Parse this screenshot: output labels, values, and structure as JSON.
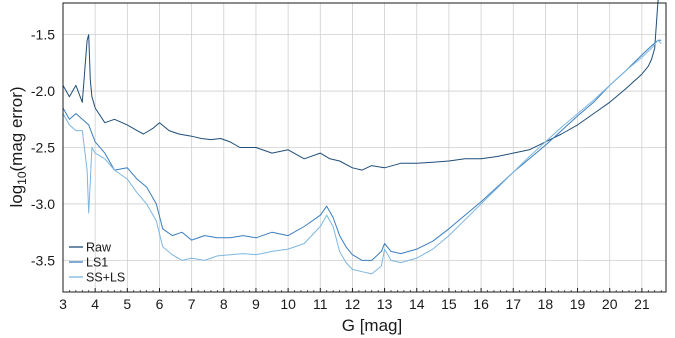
{
  "chart_data": {
    "type": "line",
    "title": "",
    "xlabel": "G [mag]",
    "ylabel_prefix": "log",
    "ylabel_sub": "10",
    "ylabel_suffix": "(mag error)",
    "xlim": [
      3,
      21.75
    ],
    "ylim": [
      -3.78,
      -1.22
    ],
    "xticks": [
      3,
      4,
      5,
      6,
      7,
      8,
      9,
      10,
      11,
      12,
      13,
      14,
      15,
      16,
      17,
      18,
      19,
      20,
      21
    ],
    "yticks": [
      -1.5,
      -2.0,
      -2.5,
      -3.0,
      -3.5
    ],
    "ytick_labels": [
      "-1.5",
      "-2.0",
      "-2.5",
      "-3.0",
      "-3.5"
    ],
    "grid": true,
    "legend_position": "lower-left",
    "series": [
      {
        "name": "Raw",
        "color": "#1f4e79",
        "x": [
          3.0,
          3.2,
          3.4,
          3.6,
          3.75,
          3.8,
          3.85,
          3.9,
          4.0,
          4.3,
          4.6,
          5.0,
          5.3,
          5.5,
          5.8,
          6.0,
          6.3,
          6.6,
          7.0,
          7.3,
          7.6,
          7.9,
          8.2,
          8.5,
          9.0,
          9.5,
          10.0,
          10.5,
          11.0,
          11.3,
          11.6,
          12.0,
          12.3,
          12.6,
          13.0,
          13.5,
          14.0,
          14.5,
          15.0,
          15.5,
          16.0,
          16.5,
          17.0,
          17.5,
          18.0,
          18.5,
          19.0,
          19.5,
          20.0,
          20.5,
          21.0,
          21.2,
          21.3,
          21.4,
          21.5,
          21.6
        ],
        "y": [
          -1.95,
          -2.05,
          -1.95,
          -2.1,
          -1.55,
          -1.5,
          -1.9,
          -2.05,
          -2.15,
          -2.28,
          -2.25,
          -2.3,
          -2.35,
          -2.38,
          -2.33,
          -2.28,
          -2.35,
          -2.38,
          -2.4,
          -2.42,
          -2.43,
          -2.42,
          -2.45,
          -2.5,
          -2.5,
          -2.55,
          -2.52,
          -2.6,
          -2.55,
          -2.6,
          -2.62,
          -2.68,
          -2.7,
          -2.66,
          -2.68,
          -2.64,
          -2.64,
          -2.63,
          -2.62,
          -2.6,
          -2.6,
          -2.58,
          -2.55,
          -2.52,
          -2.45,
          -2.38,
          -2.3,
          -2.2,
          -2.1,
          -1.98,
          -1.85,
          -1.78,
          -1.72,
          -1.62,
          -1.2,
          -1.15
        ]
      },
      {
        "name": "LS1",
        "color": "#3a7ebf",
        "x": [
          3.0,
          3.2,
          3.4,
          3.6,
          3.8,
          4.0,
          4.3,
          4.6,
          5.0,
          5.3,
          5.6,
          5.9,
          6.1,
          6.4,
          6.7,
          7.0,
          7.4,
          7.8,
          8.2,
          8.6,
          9.0,
          9.5,
          10.0,
          10.5,
          11.0,
          11.2,
          11.4,
          11.6,
          11.8,
          12.0,
          12.3,
          12.6,
          12.9,
          13.0,
          13.2,
          13.5,
          14.0,
          14.5,
          15.0,
          15.5,
          16.0,
          16.5,
          17.0,
          17.5,
          18.0,
          18.5,
          19.0,
          19.5,
          20.0,
          20.5,
          21.0,
          21.3,
          21.5,
          21.6
        ],
        "y": [
          -2.15,
          -2.25,
          -2.2,
          -2.25,
          -2.3,
          -2.45,
          -2.55,
          -2.7,
          -2.68,
          -2.78,
          -2.85,
          -3.0,
          -3.22,
          -3.28,
          -3.25,
          -3.32,
          -3.28,
          -3.3,
          -3.3,
          -3.28,
          -3.3,
          -3.25,
          -3.28,
          -3.2,
          -3.1,
          -3.02,
          -3.12,
          -3.28,
          -3.38,
          -3.45,
          -3.5,
          -3.5,
          -3.42,
          -3.35,
          -3.42,
          -3.44,
          -3.4,
          -3.33,
          -3.22,
          -3.1,
          -2.98,
          -2.85,
          -2.72,
          -2.6,
          -2.48,
          -2.35,
          -2.22,
          -2.1,
          -1.95,
          -1.82,
          -1.68,
          -1.6,
          -1.55,
          -1.55
        ]
      },
      {
        "name": "SS+LS",
        "color": "#7db6e0",
        "x": [
          3.0,
          3.2,
          3.4,
          3.6,
          3.75,
          3.8,
          3.85,
          3.9,
          4.0,
          4.3,
          4.6,
          5.0,
          5.3,
          5.6,
          5.9,
          6.1,
          6.4,
          6.7,
          7.0,
          7.4,
          7.8,
          8.2,
          8.6,
          9.0,
          9.5,
          10.0,
          10.5,
          11.0,
          11.2,
          11.4,
          11.6,
          11.8,
          12.0,
          12.3,
          12.6,
          12.9,
          13.0,
          13.2,
          13.5,
          14.0,
          14.5,
          15.0,
          15.5,
          16.0,
          16.5,
          17.0,
          17.5,
          18.0,
          18.5,
          19.0,
          19.5,
          20.0,
          20.5,
          21.0,
          21.3,
          21.5,
          21.6
        ],
        "y": [
          -2.2,
          -2.3,
          -2.35,
          -2.35,
          -2.7,
          -3.08,
          -2.8,
          -2.5,
          -2.55,
          -2.6,
          -2.7,
          -2.78,
          -2.9,
          -3.0,
          -3.15,
          -3.38,
          -3.45,
          -3.5,
          -3.48,
          -3.5,
          -3.46,
          -3.45,
          -3.44,
          -3.45,
          -3.42,
          -3.4,
          -3.35,
          -3.2,
          -3.1,
          -3.2,
          -3.42,
          -3.52,
          -3.58,
          -3.6,
          -3.62,
          -3.55,
          -3.4,
          -3.5,
          -3.52,
          -3.48,
          -3.4,
          -3.28,
          -3.14,
          -3.0,
          -2.86,
          -2.72,
          -2.58,
          -2.45,
          -2.32,
          -2.2,
          -2.08,
          -1.95,
          -1.82,
          -1.7,
          -1.62,
          -1.55,
          -1.58
        ]
      }
    ]
  }
}
